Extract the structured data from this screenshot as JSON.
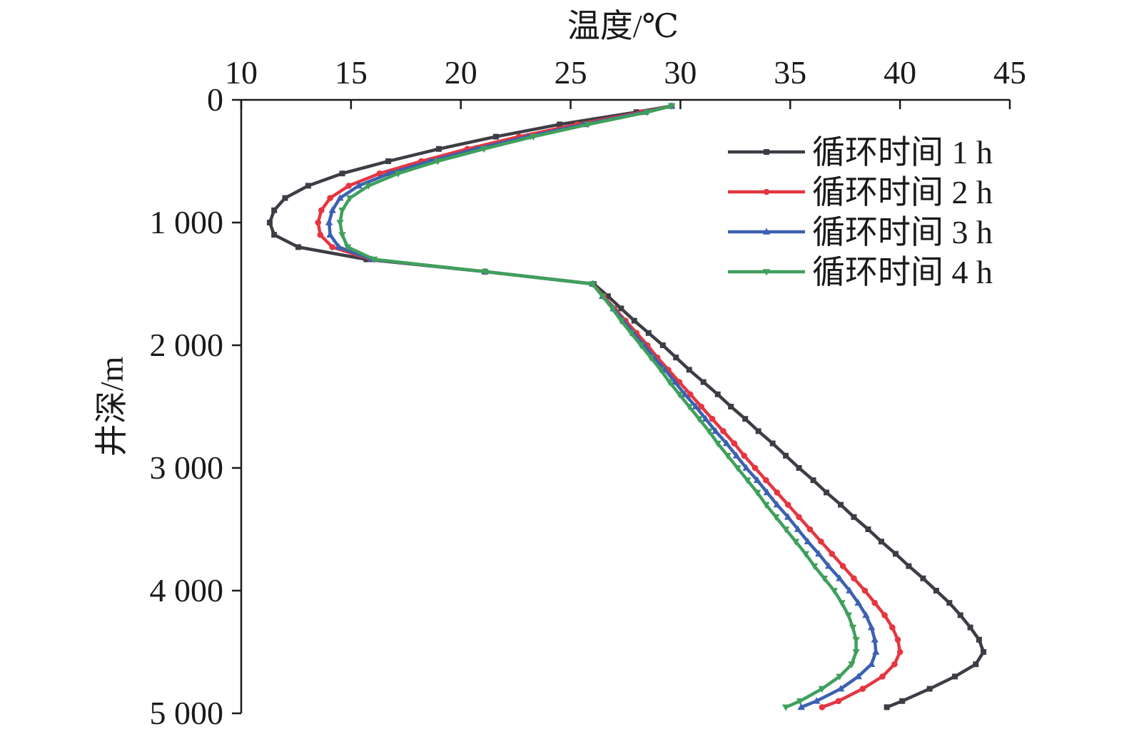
{
  "chart_data": {
    "type": "line",
    "xlabel": "温度/℃",
    "ylabel": "井深/m",
    "x_axis_position": "top",
    "y_axis_inverted": true,
    "xlim": [
      10,
      45
    ],
    "ylim": [
      0,
      5000
    ],
    "x_ticks": [
      10,
      15,
      20,
      25,
      30,
      35,
      40,
      45
    ],
    "y_ticks": [
      0,
      1000,
      2000,
      3000,
      4000,
      5000
    ],
    "y_tick_labels": [
      "0",
      "1 000",
      "2 000",
      "3 000",
      "4 000",
      "5 000"
    ],
    "grid": false,
    "legend_position": "top-right",
    "y": [
      50,
      100,
      200,
      300,
      400,
      500,
      600,
      700,
      800,
      900,
      1000,
      1100,
      1200,
      1300,
      1400,
      1500,
      1600,
      1700,
      1800,
      1900,
      2000,
      2100,
      2200,
      2300,
      2400,
      2500,
      2600,
      2700,
      2800,
      2900,
      3000,
      3100,
      3200,
      3300,
      3400,
      3500,
      3600,
      3700,
      3800,
      3900,
      4000,
      4100,
      4200,
      4300,
      4400,
      4500,
      4600,
      4700,
      4800,
      4900,
      4950
    ],
    "series": [
      {
        "name": "循环时间 1 h",
        "color": "#3d3d45",
        "marker": "square",
        "x": [
          29.6,
          28.0,
          24.5,
          21.6,
          19.0,
          16.7,
          14.6,
          13.05,
          12.0,
          11.5,
          11.3,
          11.5,
          12.6,
          15.7,
          21.1,
          26.05,
          26.7,
          27.3,
          27.9,
          28.55,
          29.2,
          29.8,
          30.4,
          31.05,
          31.7,
          32.3,
          32.95,
          33.55,
          34.2,
          34.8,
          35.4,
          36.05,
          36.65,
          37.3,
          37.9,
          38.55,
          39.15,
          39.8,
          40.4,
          41.05,
          41.65,
          42.25,
          42.75,
          43.2,
          43.6,
          43.8,
          43.45,
          42.5,
          41.35,
          40.1,
          39.4
        ]
      },
      {
        "name": "循环时间 2 h",
        "color": "#e53640",
        "marker": "circle",
        "x": [
          29.6,
          28.25,
          25.3,
          22.65,
          20.3,
          18.2,
          16.3,
          14.9,
          14.05,
          13.65,
          13.5,
          13.6,
          14.15,
          15.9,
          21.1,
          26.0,
          26.5,
          27.0,
          27.5,
          28.0,
          28.5,
          28.95,
          29.45,
          29.95,
          30.45,
          30.95,
          31.45,
          31.95,
          32.45,
          32.9,
          33.4,
          33.9,
          34.4,
          34.9,
          35.4,
          35.9,
          36.4,
          36.9,
          37.4,
          37.9,
          38.4,
          38.85,
          39.3,
          39.65,
          39.9,
          40.0,
          39.75,
          39.2,
          38.3,
          37.2,
          36.45
        ]
      },
      {
        "name": "循环时间 3 h",
        "color": "#3c60b2",
        "marker": "triangle",
        "x": [
          29.6,
          28.4,
          25.6,
          23.05,
          20.7,
          18.6,
          16.75,
          15.35,
          14.5,
          14.15,
          14.0,
          14.05,
          14.45,
          15.95,
          21.1,
          26.0,
          26.45,
          26.95,
          27.4,
          27.85,
          28.35,
          28.8,
          29.3,
          29.75,
          30.2,
          30.7,
          31.15,
          31.6,
          32.1,
          32.55,
          33.0,
          33.5,
          33.95,
          34.4,
          34.9,
          35.35,
          35.8,
          36.3,
          36.75,
          37.25,
          37.7,
          38.1,
          38.45,
          38.7,
          38.85,
          38.9,
          38.7,
          38.1,
          37.3,
          36.2,
          35.5
        ]
      },
      {
        "name": "循环时间 4 h",
        "color": "#3fa05c",
        "marker": "triangle-down",
        "x": [
          29.6,
          28.5,
          25.8,
          23.3,
          21.05,
          18.95,
          17.15,
          15.8,
          14.95,
          14.6,
          14.5,
          14.6,
          14.85,
          16.05,
          21.1,
          26.0,
          26.45,
          26.9,
          27.3,
          27.75,
          28.2,
          28.65,
          29.1,
          29.5,
          29.95,
          30.4,
          30.85,
          31.3,
          31.7,
          32.15,
          32.6,
          33.05,
          33.5,
          33.9,
          34.35,
          34.8,
          35.25,
          35.7,
          36.1,
          36.55,
          37.0,
          37.35,
          37.65,
          37.85,
          38.0,
          38.0,
          37.8,
          37.25,
          36.45,
          35.45,
          34.8
        ]
      }
    ]
  }
}
